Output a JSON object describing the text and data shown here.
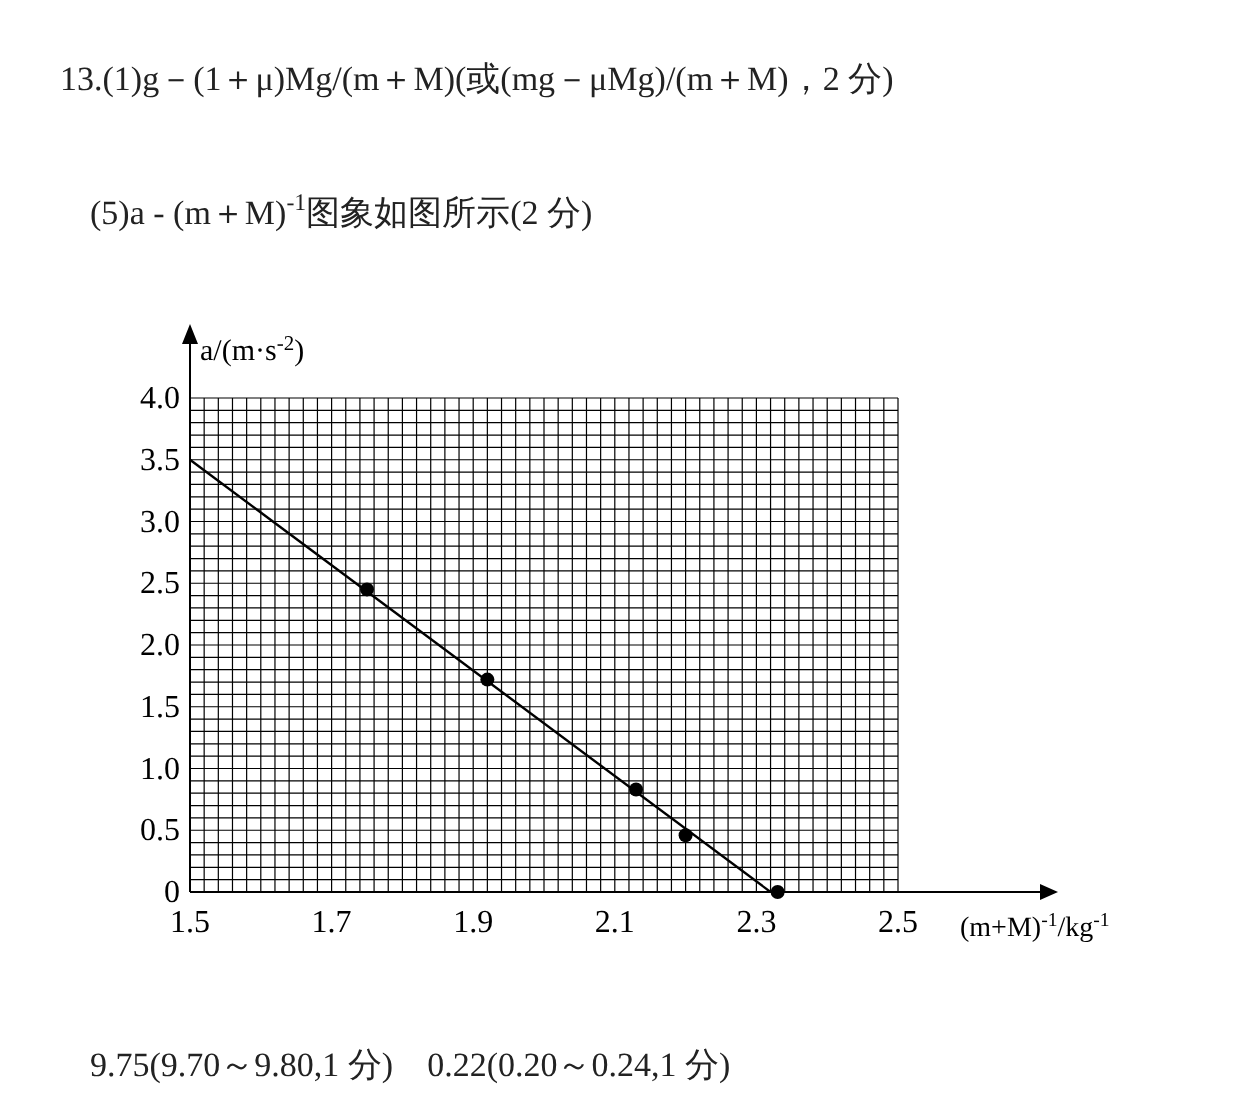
{
  "chart_data": {
    "type": "scatter",
    "xlabel": "(m+M)$^{-1}$/kg$^{-1}$",
    "ylabel": "a/(m·s$^{-2}$)",
    "annotations": [
      "13.(1)g－(1＋μ)Mg/(m＋M)(或(mg－μMg)/(m＋M)，2 分)",
      "(5)a - (m＋M)$^{-1}$图象如图所示(2 分)",
      "9.75(9.70～9.80,1 分)　0.22(0.20～0.24,1 分)"
    ],
    "series": [
      {
        "type": "scatter",
        "color": "#000000",
        "marker": "circle",
        "x": [
          1.75,
          1.92,
          2.13,
          2.2,
          2.33
        ],
        "values": [
          2.45,
          1.72,
          0.83,
          0.46,
          0
        ]
      },
      {
        "type": "line",
        "color": "#000000",
        "marker": "none",
        "line_style": "solid",
        "x": [
          1.5,
          2.32
        ],
        "values": [
          3.5,
          0
        ]
      }
    ],
    "xlim": [
      1.5,
      2.5
    ],
    "ylim": [
      0,
      4
    ],
    "xticks": [
      1.5,
      {
        "value": 1.52,
        "label": null
      },
      {
        "value": 1.54,
        "label": null
      },
      {
        "value": 1.56,
        "label": null
      },
      {
        "value": 1.58,
        "label": null
      },
      {
        "value": 1.6,
        "label": null
      },
      {
        "value": 1.62,
        "label": null
      },
      {
        "value": 1.64,
        "label": null
      },
      {
        "value": 1.66,
        "label": null
      },
      {
        "value": 1.68,
        "label": null
      },
      1.7,
      {
        "value": 1.72,
        "label": null
      },
      {
        "value": 1.74,
        "label": null
      },
      {
        "value": 1.76,
        "label": null
      },
      {
        "value": 1.78,
        "label": null
      },
      {
        "value": 1.8,
        "label": null
      },
      {
        "value": 1.82,
        "label": null
      },
      {
        "value": 1.84,
        "label": null
      },
      {
        "value": 1.86,
        "label": null
      },
      {
        "value": 1.88,
        "label": null
      },
      1.9,
      {
        "value": 1.92,
        "label": null
      },
      {
        "value": 1.94,
        "label": null
      },
      {
        "value": 1.96,
        "label": null
      },
      {
        "value": 1.98,
        "label": null
      },
      {
        "value": 2.0,
        "label": null
      },
      {
        "value": 2.02,
        "label": null
      },
      {
        "value": 2.04,
        "label": null
      },
      {
        "value": 2.06,
        "label": null
      },
      {
        "value": 2.08,
        "label": null
      },
      2.1,
      {
        "value": 2.12,
        "label": null
      },
      {
        "value": 2.14,
        "label": null
      },
      {
        "value": 2.16,
        "label": null
      },
      {
        "value": 2.18,
        "label": null
      },
      {
        "value": 2.2,
        "label": null
      },
      {
        "value": 2.22,
        "label": null
      },
      {
        "value": 2.24,
        "label": null
      },
      {
        "value": 2.26,
        "label": null
      },
      {
        "value": 2.28,
        "label": null
      },
      2.3,
      {
        "value": 2.32,
        "label": null
      },
      {
        "value": 2.34,
        "label": null
      },
      {
        "value": 2.36,
        "label": null
      },
      {
        "value": 2.38,
        "label": null
      },
      {
        "value": 2.4,
        "label": null
      },
      {
        "value": 2.42,
        "label": null
      },
      {
        "value": 2.44,
        "label": null
      },
      {
        "value": 2.46,
        "label": null
      },
      {
        "value": 2.48,
        "label": null
      },
      2.5
    ],
    "yticks": [
      0,
      {
        "value": 0.1,
        "label": null
      },
      {
        "value": 0.2,
        "label": null
      },
      {
        "value": 0.3,
        "label": null
      },
      {
        "value": 0.4,
        "label": null
      },
      0.5,
      {
        "value": 0.6,
        "label": null
      },
      {
        "value": 0.7,
        "label": null
      },
      {
        "value": 0.8,
        "label": null
      },
      {
        "value": 0.9,
        "label": null
      },
      {
        "value": 1,
        "label": "1.0"
      },
      {
        "value": 1.1,
        "label": null
      },
      {
        "value": 1.2,
        "label": null
      },
      {
        "value": 1.3,
        "label": null
      },
      {
        "value": 1.4,
        "label": null
      },
      1.5,
      {
        "value": 1.6,
        "label": null
      },
      {
        "value": 1.7,
        "label": null
      },
      {
        "value": 1.8,
        "label": null
      },
      {
        "value": 1.9,
        "label": null
      },
      {
        "value": 2,
        "label": "2.0"
      },
      {
        "value": 2.1,
        "label": null
      },
      {
        "value": 2.2,
        "label": null
      },
      {
        "value": 2.3,
        "label": null
      },
      {
        "value": 2.4,
        "label": null
      },
      2.5,
      {
        "value": 2.6,
        "label": null
      },
      {
        "value": 2.7,
        "label": null
      },
      {
        "value": 2.8,
        "label": null
      },
      {
        "value": 2.9,
        "label": null
      },
      {
        "value": 3,
        "label": "3.0"
      },
      {
        "value": 3.1,
        "label": null
      },
      {
        "value": 3.2,
        "label": null
      },
      {
        "value": 3.3,
        "label": null
      },
      {
        "value": 3.4,
        "label": null
      },
      3.5,
      {
        "value": 3.6,
        "label": null
      },
      {
        "value": 3.7,
        "label": null
      },
      {
        "value": 3.8,
        "label": null
      },
      {
        "value": 3.9,
        "label": null
      },
      {
        "value": 4,
        "label": "4.0"
      }
    ],
    "grid": true
  }
}
